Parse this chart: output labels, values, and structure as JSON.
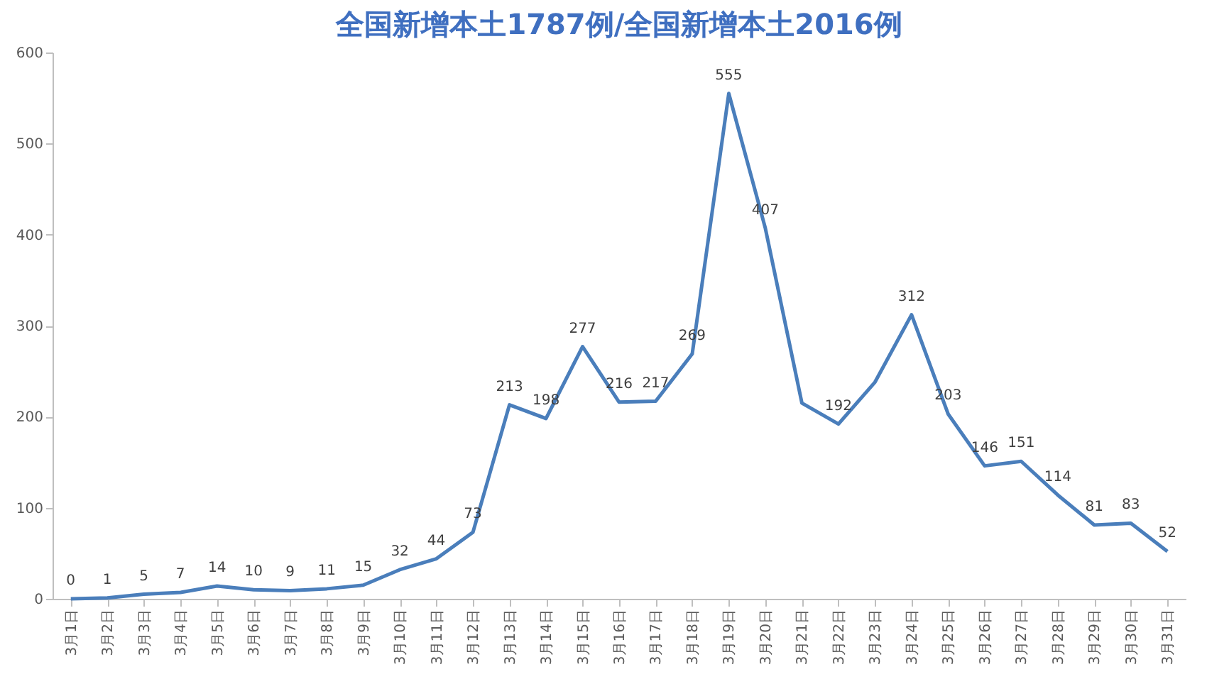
{
  "chart_data": {
    "type": "line",
    "title": "全国新增本土1787例/全国新增本土2016例",
    "categories": [
      "3月1日",
      "3月2日",
      "3月3日",
      "3月4日",
      "3月5日",
      "3月6日",
      "3月7日",
      "3月8日",
      "3月9日",
      "3月10日",
      "3月11日",
      "3月12日",
      "3月13日",
      "3月14日",
      "3月15日",
      "3月16日",
      "3月17日",
      "3月18日",
      "3月19日",
      "3月20日",
      "3月21日",
      "3月22日",
      "3月23日",
      "3月24日",
      "3月25日",
      "3月26日",
      "3月27日",
      "3月28日",
      "3月29日",
      "3月30日",
      "3月31日"
    ],
    "series": [
      {
        "color": "#4a7ebb",
        "values": [
          0,
          1,
          5,
          7,
          14,
          10,
          9,
          11,
          15,
          32,
          44,
          73,
          213,
          198,
          277,
          216,
          217,
          269,
          555,
          407,
          215,
          192,
          238,
          312,
          203,
          146,
          151,
          114,
          81,
          83,
          52
        ],
        "value_labels": [
          "0",
          "1",
          "5",
          "7",
          "14",
          "10",
          "9",
          "11",
          "15",
          "32",
          "44",
          "73",
          "213",
          "198",
          "277",
          "216",
          "217",
          "269",
          "555",
          "407",
          null,
          "192",
          null,
          "312",
          "203",
          "146",
          "151",
          "114",
          "81",
          "83",
          "52"
        ]
      }
    ],
    "ylim": [
      0,
      600
    ],
    "yticks": [
      0,
      100,
      200,
      300,
      400,
      500,
      600
    ],
    "grid": false,
    "legend": false,
    "marker": "none",
    "line_style": "solid"
  }
}
